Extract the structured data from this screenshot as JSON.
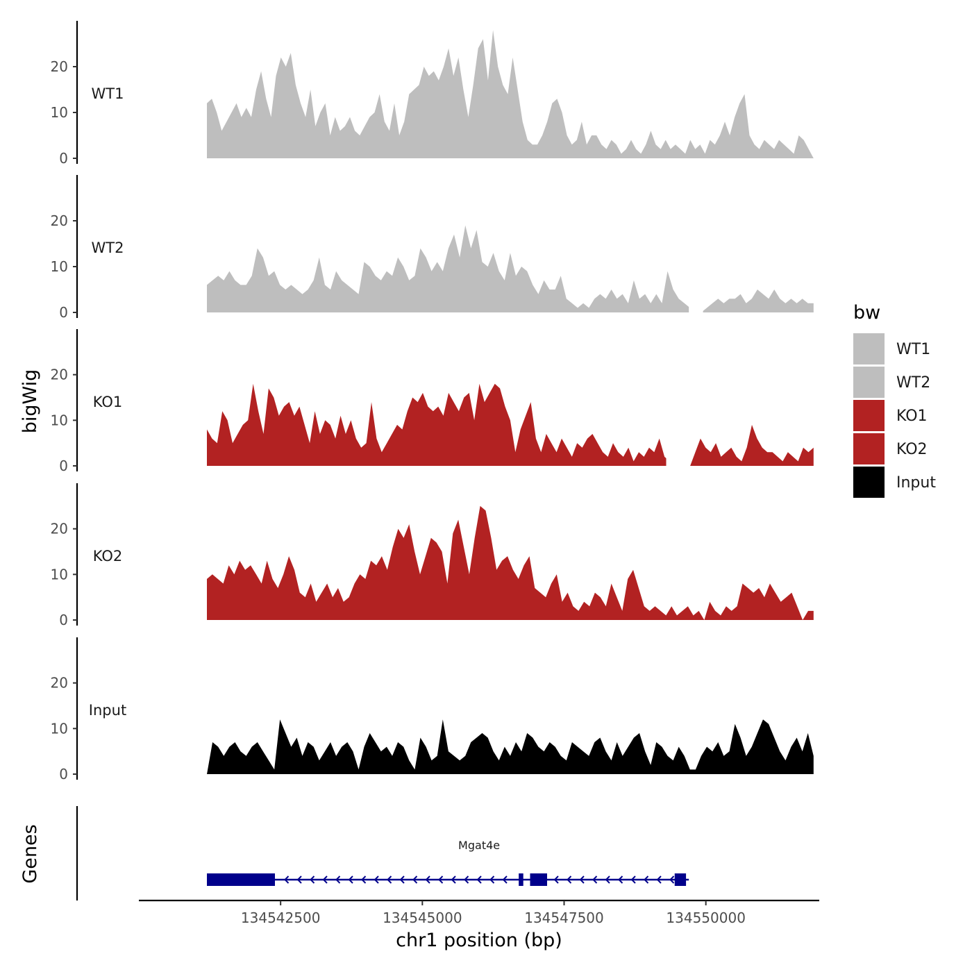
{
  "chart_data": {
    "type": "area",
    "title": "",
    "ylabel": "bigWig",
    "xlabel": "chr1 position (bp)",
    "genes_label": "Genes",
    "legend_title": "bw",
    "ylim": [
      0,
      30
    ],
    "yticks": [
      0,
      10,
      20
    ],
    "xlim": [
      134540000,
      134552000
    ],
    "xticks": [
      134542500,
      134545000,
      134547500,
      134550000
    ],
    "xtick_labels": [
      "134542500",
      "134545000",
      "134547500",
      "134550000"
    ],
    "colors": {
      "WT1": "#bebebe",
      "WT2": "#bebebe",
      "KO1": "#b22222",
      "KO2": "#b22222",
      "Input": "#000000",
      "gene": "#00008b"
    },
    "tracks": [
      {
        "name": "WT1",
        "x_start": 134541200,
        "x_end": 134551900,
        "values": [
          12,
          13,
          10,
          6,
          8,
          10,
          12,
          9,
          11,
          9,
          15,
          19,
          13,
          9,
          18,
          22,
          20,
          23,
          16,
          12,
          9,
          15,
          7,
          10,
          12,
          5,
          9,
          6,
          7,
          9,
          6,
          5,
          7,
          9,
          10,
          14,
          8,
          6,
          12,
          5,
          8,
          14,
          15,
          16,
          20,
          18,
          19,
          17,
          20,
          24,
          18,
          22,
          15,
          9,
          16,
          24,
          26,
          17,
          28,
          20,
          16,
          14,
          22,
          15,
          8,
          4,
          3,
          3,
          5,
          8,
          12,
          13,
          10,
          5,
          3,
          4,
          8,
          3,
          5,
          5,
          3,
          2,
          4,
          3,
          1,
          2,
          4,
          2,
          1,
          3,
          6,
          3,
          2,
          4,
          2,
          3,
          2,
          1,
          4,
          2,
          3,
          1,
          4,
          3,
          5,
          8,
          5,
          9,
          12,
          14,
          5,
          3,
          2,
          4,
          3,
          2,
          4,
          3,
          2,
          1,
          5,
          4,
          2,
          0
        ],
        "gaps": []
      },
      {
        "name": "WT2",
        "x_start": 134541200,
        "x_end": 134551900,
        "values": [
          6,
          7,
          8,
          7,
          9,
          7,
          6,
          6,
          8,
          14,
          12,
          8,
          9,
          6,
          5,
          6,
          5,
          4,
          5,
          7,
          12,
          6,
          5,
          9,
          7,
          6,
          5,
          4,
          11,
          10,
          8,
          7,
          9,
          8,
          12,
          10,
          7,
          8,
          14,
          12,
          9,
          11,
          9,
          14,
          17,
          12,
          19,
          14,
          18,
          11,
          10,
          13,
          9,
          7,
          13,
          8,
          10,
          9,
          6,
          4,
          7,
          5,
          5,
          8,
          3,
          2,
          1,
          2,
          1,
          3,
          4,
          3,
          5,
          3,
          4,
          2,
          7,
          3,
          4,
          2,
          4,
          2,
          9,
          5,
          3,
          2,
          1,
          0,
          0,
          1,
          2,
          3,
          2,
          3,
          3,
          4,
          2,
          3,
          5,
          4,
          3,
          5,
          3,
          2,
          3,
          2,
          3,
          2,
          2
        ],
        "gaps": [
          [
            134549700,
            134549950
          ]
        ]
      },
      {
        "name": "KO1",
        "x_start": 134541200,
        "x_end": 134551900,
        "values": [
          8,
          6,
          5,
          12,
          10,
          5,
          7,
          9,
          10,
          18,
          12,
          7,
          17,
          15,
          11,
          13,
          14,
          11,
          13,
          9,
          5,
          12,
          7,
          10,
          9,
          6,
          11,
          7,
          10,
          6,
          4,
          5,
          14,
          6,
          3,
          5,
          7,
          9,
          8,
          12,
          15,
          14,
          16,
          13,
          12,
          13,
          11,
          16,
          14,
          12,
          15,
          16,
          10,
          18,
          14,
          16,
          18,
          17,
          13,
          10,
          3,
          8,
          11,
          14,
          6,
          3,
          7,
          5,
          3,
          6,
          4,
          2,
          5,
          4,
          6,
          7,
          5,
          3,
          2,
          5,
          3,
          2,
          4,
          1,
          3,
          2,
          4,
          3,
          6,
          2,
          1,
          0,
          0,
          0,
          0,
          3,
          6,
          4,
          3,
          5,
          2,
          3,
          4,
          2,
          1,
          4,
          9,
          6,
          4,
          3,
          3,
          2,
          1,
          3,
          2,
          1,
          4,
          3,
          4
        ],
        "gaps": [
          [
            134549300,
            134549600
          ]
        ]
      },
      {
        "name": "KO2",
        "x_start": 134541200,
        "x_end": 134551900,
        "values": [
          9,
          10,
          9,
          8,
          12,
          10,
          13,
          11,
          12,
          10,
          8,
          13,
          9,
          7,
          10,
          14,
          11,
          6,
          5,
          8,
          4,
          6,
          8,
          5,
          7,
          4,
          5,
          8,
          10,
          9,
          13,
          12,
          14,
          11,
          16,
          20,
          18,
          21,
          15,
          10,
          14,
          18,
          17,
          15,
          8,
          19,
          22,
          16,
          10,
          18,
          25,
          24,
          18,
          11,
          13,
          14,
          11,
          9,
          12,
          14,
          7,
          6,
          5,
          8,
          10,
          4,
          6,
          3,
          2,
          4,
          3,
          6,
          5,
          3,
          8,
          5,
          2,
          9,
          11,
          7,
          3,
          2,
          3,
          2,
          1,
          3,
          1,
          2,
          3,
          1,
          2,
          0,
          4,
          2,
          1,
          3,
          2,
          3,
          8,
          7,
          6,
          7,
          5,
          8,
          6,
          4,
          5,
          6,
          3,
          0,
          2,
          2
        ],
        "gaps": []
      },
      {
        "name": "Input",
        "x_start": 134541200,
        "x_end": 134551900,
        "values": [
          0,
          7,
          6,
          4,
          6,
          7,
          5,
          4,
          6,
          7,
          5,
          3,
          1,
          12,
          9,
          6,
          8,
          4,
          7,
          6,
          3,
          5,
          7,
          4,
          6,
          7,
          5,
          1,
          6,
          9,
          7,
          5,
          6,
          4,
          7,
          6,
          3,
          1,
          8,
          6,
          3,
          4,
          12,
          5,
          4,
          3,
          4,
          7,
          8,
          9,
          8,
          5,
          3,
          6,
          4,
          7,
          5,
          9,
          8,
          6,
          5,
          7,
          6,
          4,
          3,
          7,
          6,
          5,
          4,
          7,
          8,
          5,
          3,
          7,
          4,
          6,
          8,
          9,
          5,
          2,
          7,
          6,
          4,
          3,
          6,
          4,
          1,
          1,
          4,
          6,
          5,
          7,
          4,
          5,
          11,
          8,
          4,
          6,
          9,
          12,
          11,
          8,
          5,
          3,
          6,
          8,
          5,
          9,
          4
        ],
        "gaps": []
      }
    ],
    "legend": [
      "WT1",
      "WT2",
      "KO1",
      "KO2",
      "Input"
    ],
    "genes": [
      {
        "name": "Mgat4e",
        "start": 134541200,
        "end": 134549700,
        "strand": "-",
        "exons": [
          [
            134541200,
            134542400
          ],
          [
            134546700,
            134546780
          ],
          [
            134546900,
            134547200
          ],
          [
            134549450,
            134549650
          ]
        ]
      }
    ]
  }
}
